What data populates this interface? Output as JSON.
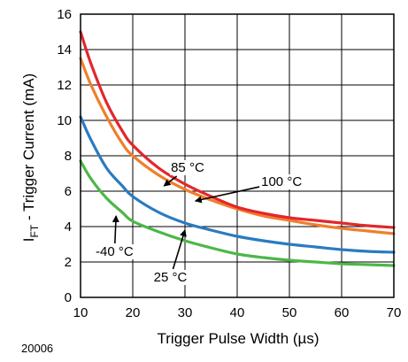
{
  "chart_data": {
    "type": "line",
    "x_ticks": [
      10,
      20,
      30,
      40,
      50,
      60,
      70
    ],
    "y_ticks": [
      0,
      2,
      4,
      6,
      8,
      10,
      12,
      14,
      16
    ],
    "xlim": [
      10,
      70
    ],
    "ylim": [
      0,
      16
    ],
    "grid": true,
    "xlabel": "Trigger Pulse Width (µs)",
    "ylabel_main": "I",
    "ylabel_sub": "FT",
    "ylabel_rest": " - Trigger Current (mA)",
    "figure_id": "20006",
    "x": [
      10,
      12,
      15,
      18,
      20,
      25,
      30,
      35,
      40,
      45,
      50,
      55,
      60,
      65,
      70
    ],
    "series": [
      {
        "name": "-40 °C",
        "color": "#e3262b",
        "values": [
          15.0,
          13.2,
          11.0,
          9.4,
          8.6,
          7.3,
          6.4,
          5.7,
          5.1,
          4.75,
          4.5,
          4.35,
          4.2,
          4.05,
          3.95
        ]
      },
      {
        "name": "25 °C",
        "color": "#f07e2b",
        "values": [
          13.5,
          12.0,
          10.2,
          8.7,
          8.0,
          6.9,
          6.1,
          5.5,
          5.0,
          4.6,
          4.35,
          4.1,
          3.9,
          3.75,
          3.6
        ]
      },
      {
        "name": "85 °C",
        "color": "#2a7bc0",
        "values": [
          10.2,
          8.9,
          7.3,
          6.3,
          5.7,
          4.8,
          4.2,
          3.8,
          3.45,
          3.2,
          3.0,
          2.85,
          2.7,
          2.6,
          2.55
        ]
      },
      {
        "name": "100 °C",
        "color": "#4cb748",
        "values": [
          7.7,
          6.7,
          5.6,
          4.8,
          4.3,
          3.7,
          3.2,
          2.8,
          2.45,
          2.25,
          2.1,
          2.0,
          1.9,
          1.85,
          1.8
        ]
      }
    ],
    "annotations": [
      {
        "label": "85 °C",
        "text_x": 30.5,
        "text_y": 7.1,
        "tip_x": 26.0,
        "tip_y": 6.3
      },
      {
        "label": "100 °C",
        "text_x": 48.5,
        "text_y": 6.3,
        "tip_x": 32.0,
        "tip_y": 5.45
      },
      {
        "label": "-40 °C",
        "text_x": 16.5,
        "text_y": 2.35,
        "tip_x": 16.8,
        "tip_y": 4.6
      },
      {
        "label": "25 °C",
        "text_x": 27.2,
        "text_y": 0.9,
        "tip_x": 30.0,
        "tip_y": 3.8
      }
    ]
  }
}
